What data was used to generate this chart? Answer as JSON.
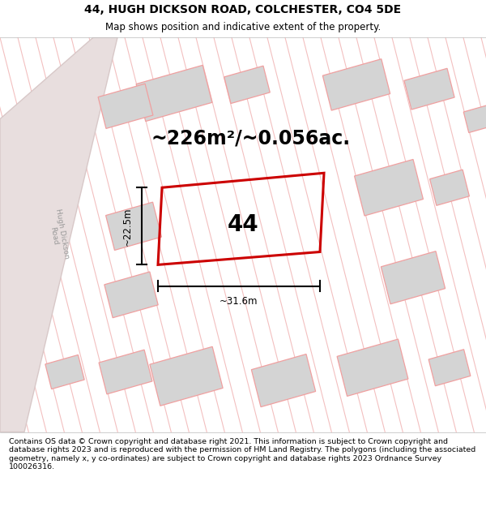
{
  "title": "44, HUGH DICKSON ROAD, COLCHESTER, CO4 5DE",
  "subtitle": "Map shows position and indicative extent of the property.",
  "footer": "Contains OS data © Crown copyright and database right 2021. This information is subject to Crown copyright and database rights 2023 and is reproduced with the permission of HM Land Registry. The polygons (including the associated geometry, namely x, y co-ordinates) are subject to Crown copyright and database rights 2023 Ordnance Survey 100026316.",
  "area_label": "~226m²/~0.056ac.",
  "width_label": "~31.6m",
  "height_label": "~22.5m",
  "number_label": "44",
  "plot_color": "#cc0000",
  "building_fill": "#d4d4d4",
  "building_edge": "#f0a0a0",
  "stripe_color": "#f0b0b0",
  "road_fill": "#e8dede",
  "road_edge": "#d8c8c8",
  "map_bg": "#f7f0f0",
  "title_fontsize": 10,
  "subtitle_fontsize": 8.5,
  "footer_fontsize": 6.8,
  "area_fontsize": 17,
  "num_fontsize": 20
}
